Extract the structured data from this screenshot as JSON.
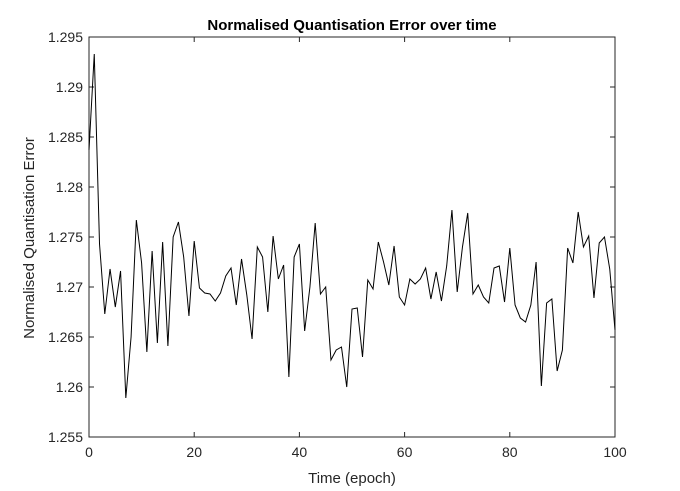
{
  "chart_data": {
    "type": "line",
    "title": "Normalised Quantisation Error over time",
    "xlabel": "Time (epoch)",
    "ylabel": "Normalised Quantisation Error",
    "xlim": [
      0,
      100
    ],
    "ylim": [
      1.255,
      1.295
    ],
    "xticks": [
      0,
      20,
      40,
      60,
      80,
      100
    ],
    "xtick_labels": [
      "0",
      "20",
      "40",
      "60",
      "80",
      "100"
    ],
    "yticks": [
      1.255,
      1.26,
      1.265,
      1.27,
      1.275,
      1.28,
      1.285,
      1.29,
      1.295
    ],
    "ytick_labels": [
      "1.255",
      "1.26",
      "1.265",
      "1.27",
      "1.275",
      "1.28",
      "1.285",
      "1.29",
      "1.295"
    ],
    "grid": false,
    "box": true,
    "line_color": "#000000",
    "series": [
      {
        "x": [
          0,
          1,
          2,
          3,
          4,
          5,
          6,
          7,
          8,
          9,
          10,
          11,
          12,
          13,
          14,
          15,
          16,
          17,
          18,
          19,
          20,
          21,
          22,
          23,
          24,
          25,
          26,
          27,
          28,
          29,
          30,
          31,
          32,
          33,
          34,
          35,
          36,
          37,
          38,
          39,
          40,
          41,
          42,
          43,
          44,
          45,
          46,
          47,
          48,
          49,
          50,
          51,
          52,
          53,
          54,
          55,
          56,
          57,
          58,
          59,
          60,
          61,
          62,
          63,
          64,
          65,
          66,
          67,
          68,
          69,
          70,
          71,
          72,
          73,
          74,
          75,
          76,
          77,
          78,
          79,
          80,
          81,
          82,
          83,
          84,
          85,
          86,
          87,
          88,
          89,
          90,
          91,
          92,
          93,
          94,
          95,
          96,
          97,
          98,
          99,
          100
        ],
        "y": [
          1.2837,
          1.2933,
          1.2743,
          1.2673,
          1.2718,
          1.268,
          1.2716,
          1.2589,
          1.265,
          1.2767,
          1.2724,
          1.2635,
          1.2736,
          1.2644,
          1.2745,
          1.2641,
          1.275,
          1.2765,
          1.273,
          1.2671,
          1.2746,
          1.2699,
          1.2694,
          1.2693,
          1.2686,
          1.2694,
          1.2711,
          1.2719,
          1.2682,
          1.2728,
          1.2692,
          1.2648,
          1.274,
          1.273,
          1.2675,
          1.2751,
          1.2708,
          1.2722,
          1.261,
          1.273,
          1.2743,
          1.2656,
          1.27,
          1.2764,
          1.2693,
          1.27,
          1.2627,
          1.2637,
          1.264,
          1.26,
          1.2678,
          1.2679,
          1.263,
          1.2707,
          1.2698,
          1.2745,
          1.2725,
          1.2702,
          1.2741,
          1.269,
          1.2682,
          1.2708,
          1.2703,
          1.2708,
          1.2719,
          1.2688,
          1.2715,
          1.2686,
          1.2721,
          1.2777,
          1.2695,
          1.274,
          1.2774,
          1.2693,
          1.2702,
          1.269,
          1.2684,
          1.2719,
          1.2721,
          1.2685,
          1.2739,
          1.2682,
          1.2669,
          1.2665,
          1.2682,
          1.2725,
          1.2601,
          1.2684,
          1.2688,
          1.2616,
          1.2637,
          1.2739,
          1.2724,
          1.2775,
          1.274,
          1.2751,
          1.2689,
          1.2744,
          1.275,
          1.2718,
          1.2657
        ]
      }
    ]
  }
}
